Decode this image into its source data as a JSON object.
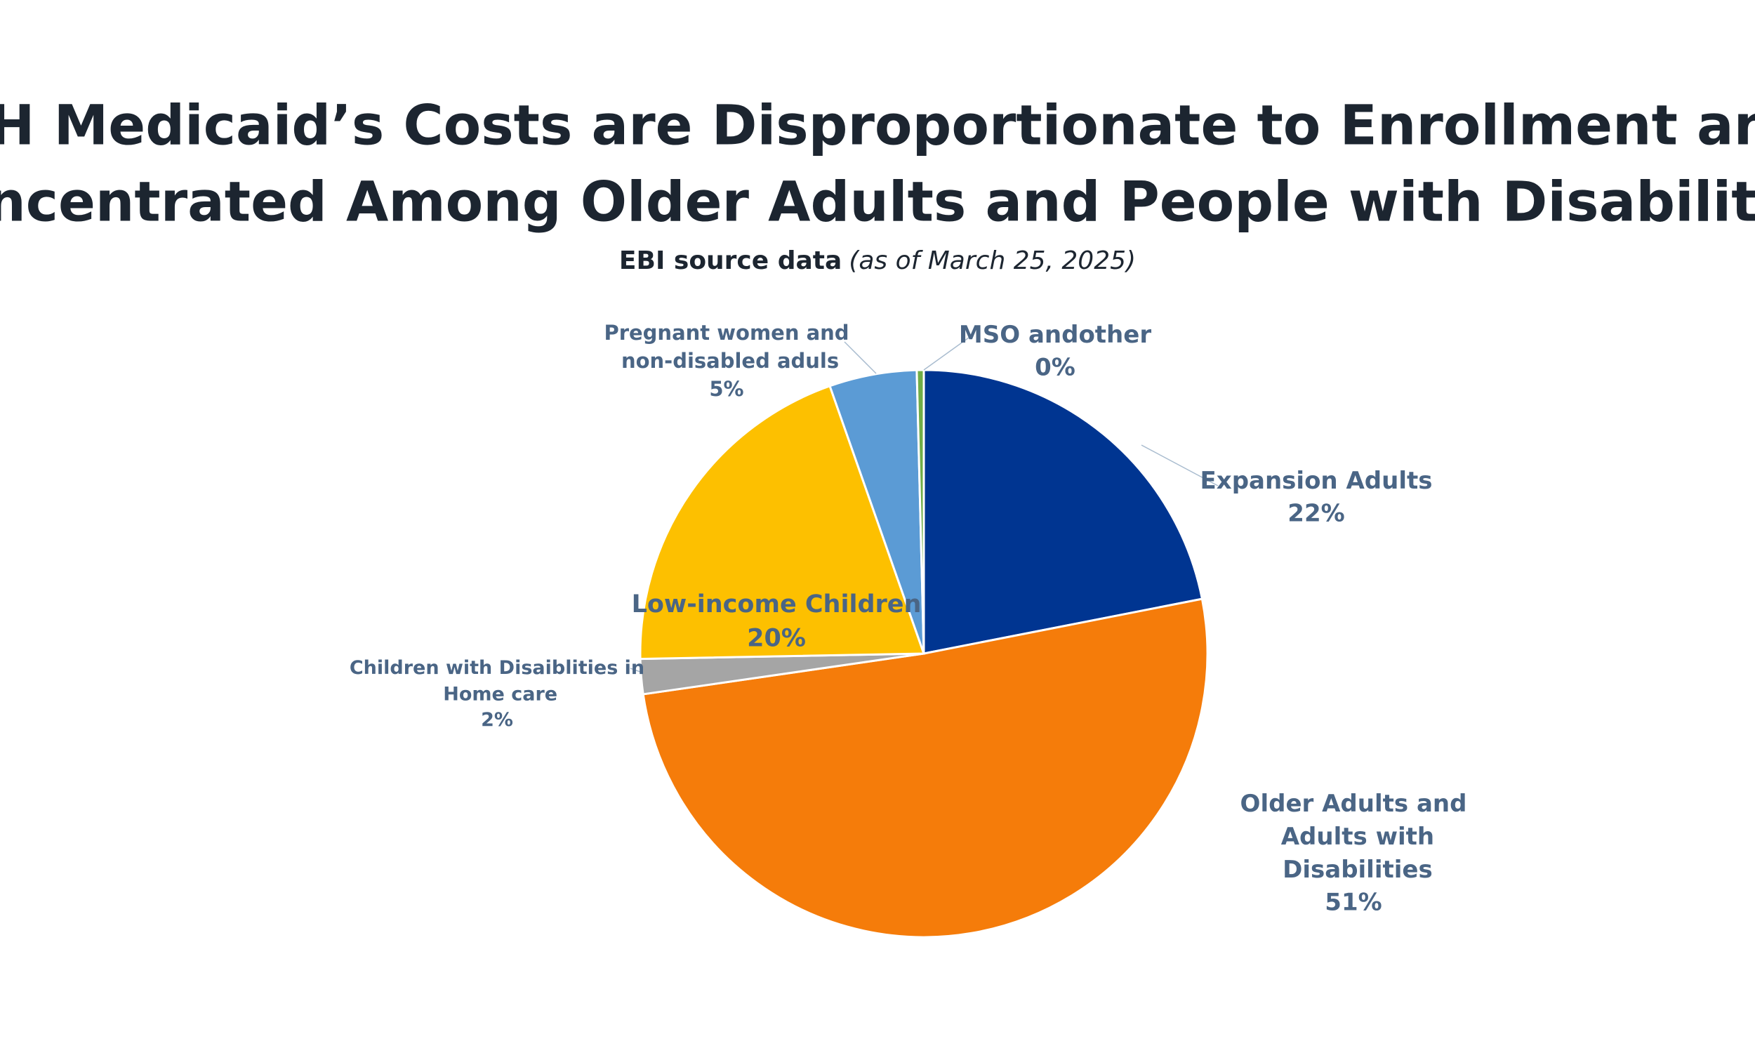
{
  "chart_data": {
    "type": "pie",
    "title": [
      "NH Medicaid’s Costs are Disproportionate to Enrollment and",
      "Concentrated Among Older Adults and People with Disabilities"
    ],
    "subtitle": "EBI source data",
    "subtitle_note": "(as of March 25, 2025)",
    "categories": [
      "Expansion Adults",
      "Older Adults and Adults with Disabilities",
      "Children with Disaiblities in Home care",
      "Low-income Children",
      "Pregnant women and non-disabled aduls",
      "MSO andother"
    ],
    "values": [
      22,
      51,
      2,
      20,
      5,
      0.4
    ],
    "value_labels": [
      "22%",
      "51%",
      "2%",
      "20%",
      "5%",
      "0%"
    ],
    "colors": [
      "#003591",
      "#f57c0a",
      "#a5a5a5",
      "#fdc000",
      "#5b9bd5",
      "#70ad47"
    ]
  }
}
